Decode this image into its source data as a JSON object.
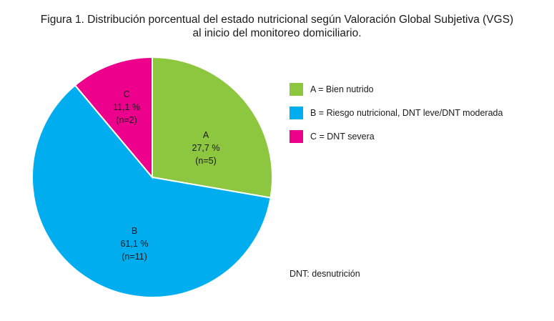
{
  "title_line1": "Figura 1. Distribución porcentual del estado nutricional según Valoración Global Subjetiva (VGS)",
  "title_line2": "al inicio del monitoreo domiciliario.",
  "legend": [
    {
      "label": "A = Bien nutrido",
      "color": "#8dc63f"
    },
    {
      "label": "B = Riesgo nutricional, DNT leve/DNT moderada",
      "color": "#00aeef"
    },
    {
      "label": "C = DNT severa",
      "color": "#ec008c"
    }
  ],
  "note": "DNT: desnutrición",
  "chart_data": {
    "type": "pie",
    "title": "Figura 1. Distribución porcentual del estado nutricional según Valoración Global Subjetiva (VGS) al inicio del monitoreo domiciliario.",
    "start": "12 o'clock, clockwise",
    "slices": [
      {
        "category": "A",
        "percent_label": "27,7 %",
        "n_label": "(n=5)",
        "value": 27.7,
        "color": "#8dc63f"
      },
      {
        "category": "B",
        "percent_label": "61,1 %",
        "n_label": "(n=11)",
        "value": 61.1,
        "color": "#00aeef"
      },
      {
        "category": "C",
        "percent_label": "11,1 %",
        "n_label": "(n=2)",
        "value": 11.1,
        "color": "#ec008c"
      }
    ]
  }
}
